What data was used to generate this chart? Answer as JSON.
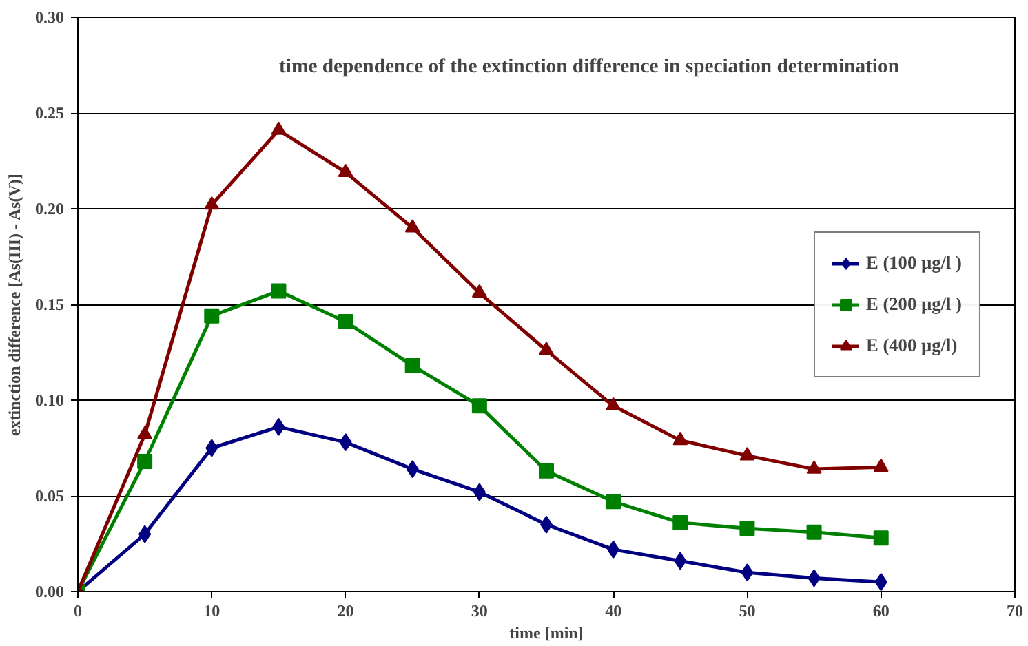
{
  "chart_data": {
    "type": "line",
    "title": "time dependence of the extinction difference in speciation determination",
    "xlabel": "time [min]",
    "ylabel": "extinction difference [As(III) - As(V)]",
    "x": [
      0,
      5,
      10,
      15,
      20,
      25,
      30,
      35,
      40,
      45,
      50,
      55,
      60
    ],
    "series": [
      {
        "name": "E (100 µg/l )",
        "color": "#000080",
        "marker": "diamond",
        "values": [
          0,
          0.03,
          0.075,
          0.086,
          0.078,
          0.064,
          0.052,
          0.035,
          0.022,
          0.016,
          0.01,
          0.007,
          0.005
        ]
      },
      {
        "name": "E (200 µg/l )",
        "color": "#008000",
        "marker": "square",
        "values": [
          0,
          0.068,
          0.144,
          0.157,
          0.141,
          0.118,
          0.097,
          0.063,
          0.047,
          0.036,
          0.033,
          0.031,
          0.028
        ]
      },
      {
        "name": "E (400 µg/l)",
        "color": "#800000",
        "marker": "triangle",
        "values": [
          0,
          0.082,
          0.202,
          0.241,
          0.219,
          0.19,
          0.156,
          0.126,
          0.097,
          0.079,
          0.071,
          0.064,
          0.065
        ]
      }
    ],
    "xlim": [
      0,
      70
    ],
    "xticks": [
      0,
      10,
      20,
      30,
      40,
      50,
      60,
      70
    ],
    "ylim": [
      0,
      0.3
    ],
    "yticks": [
      {
        "value": 0,
        "label": "0.00"
      },
      {
        "value": 0.05,
        "label": "0.05"
      },
      {
        "value": 0.1,
        "label": "0.10"
      },
      {
        "value": 0.15,
        "label": "0.15"
      },
      {
        "value": 0.2,
        "label": "0.20"
      },
      {
        "value": 0.25,
        "label": "0.25"
      },
      {
        "value": 0.3,
        "label": "0.30"
      }
    ],
    "grid": "y",
    "legend": "right",
    "line_style": "solid"
  }
}
